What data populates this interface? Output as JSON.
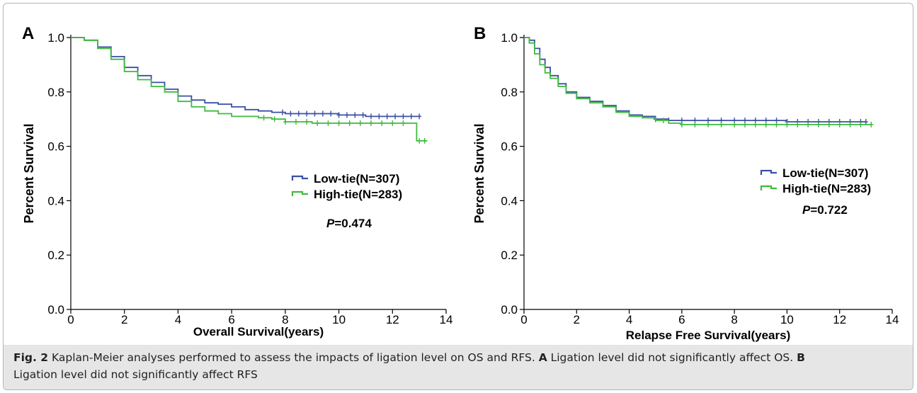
{
  "chart_data": [
    {
      "type": "line",
      "panel_label": "A",
      "xlabel": "Overall Survival(years)",
      "ylabel": "Percent Survival",
      "xlim": [
        0,
        14
      ],
      "ylim": [
        0.0,
        1.0
      ],
      "x_ticks": [
        "0",
        "2",
        "4",
        "6",
        "8",
        "10",
        "12",
        "14"
      ],
      "y_ticks": [
        "0.0",
        "0.2",
        "0.4",
        "0.6",
        "0.8",
        "1.0"
      ],
      "legend": {
        "position": "center-right",
        "entries": [
          "Low-tie(N=307)",
          "High-tie(N=283)"
        ],
        "p_prefix": "P",
        "p_value": "=0.474"
      },
      "series": [
        {
          "name": "Low-tie(N=307)",
          "color": "#3a4fa6",
          "points": [
            [
              0,
              1.0
            ],
            [
              0.5,
              0.99
            ],
            [
              1.0,
              0.965
            ],
            [
              1.5,
              0.93
            ],
            [
              2.0,
              0.89
            ],
            [
              2.5,
              0.86
            ],
            [
              3.0,
              0.835
            ],
            [
              3.5,
              0.81
            ],
            [
              4.0,
              0.785
            ],
            [
              4.5,
              0.77
            ],
            [
              5.0,
              0.76
            ],
            [
              5.5,
              0.755
            ],
            [
              6.0,
              0.745
            ],
            [
              6.5,
              0.735
            ],
            [
              7.0,
              0.73
            ],
            [
              7.5,
              0.725
            ],
            [
              8.0,
              0.72
            ],
            [
              9.0,
              0.72
            ],
            [
              10.0,
              0.715
            ],
            [
              11.0,
              0.71
            ],
            [
              12.0,
              0.71
            ],
            [
              13.0,
              0.71
            ]
          ],
          "censor_x": [
            7.9,
            8.2,
            8.5,
            8.8,
            9.1,
            9.4,
            9.7,
            10.0,
            10.3,
            10.6,
            10.9,
            11.2,
            11.5,
            11.8,
            12.1,
            12.4,
            12.7,
            13.0
          ]
        },
        {
          "name": "High-tie(N=283)",
          "color": "#3dbb3d",
          "points": [
            [
              0,
              1.0
            ],
            [
              0.5,
              0.99
            ],
            [
              1.0,
              0.96
            ],
            [
              1.5,
              0.92
            ],
            [
              2.0,
              0.875
            ],
            [
              2.5,
              0.845
            ],
            [
              3.0,
              0.82
            ],
            [
              3.5,
              0.8
            ],
            [
              4.0,
              0.765
            ],
            [
              4.5,
              0.745
            ],
            [
              5.0,
              0.73
            ],
            [
              5.5,
              0.72
            ],
            [
              6.0,
              0.71
            ],
            [
              6.5,
              0.71
            ],
            [
              7.0,
              0.705
            ],
            [
              7.5,
              0.7
            ],
            [
              8.0,
              0.69
            ],
            [
              9.0,
              0.685
            ],
            [
              10.0,
              0.685
            ],
            [
              11.0,
              0.685
            ],
            [
              12.0,
              0.685
            ],
            [
              12.9,
              0.685
            ],
            [
              12.9,
              0.62
            ],
            [
              13.3,
              0.62
            ]
          ],
          "censor_x": [
            7.2,
            7.6,
            8.0,
            8.4,
            8.8,
            9.2,
            9.6,
            10.0,
            10.4,
            10.8,
            11.2,
            11.6,
            12.0,
            12.4,
            13.0,
            13.2
          ]
        }
      ]
    },
    {
      "type": "line",
      "panel_label": "B",
      "xlabel": "Relapse Free Survival(years)",
      "ylabel": "Percent Survival",
      "xlim": [
        0,
        14
      ],
      "ylim": [
        0.0,
        1.0
      ],
      "x_ticks": [
        "0",
        "2",
        "4",
        "6",
        "8",
        "10",
        "12",
        "14"
      ],
      "y_ticks": [
        "0.0",
        "0.2",
        "0.4",
        "0.6",
        "0.8",
        "1.0"
      ],
      "legend": {
        "position": "center-right",
        "entries": [
          "Low-tie(N=307)",
          "High-tie(N=283)"
        ],
        "p_prefix": "P",
        "p_value": "=0.722"
      },
      "series": [
        {
          "name": "Low-tie(N=307)",
          "color": "#3a4fa6",
          "points": [
            [
              0,
              1.0
            ],
            [
              0.2,
              0.99
            ],
            [
              0.4,
              0.96
            ],
            [
              0.6,
              0.92
            ],
            [
              0.8,
              0.89
            ],
            [
              1.0,
              0.86
            ],
            [
              1.3,
              0.83
            ],
            [
              1.6,
              0.8
            ],
            [
              2.0,
              0.78
            ],
            [
              2.5,
              0.765
            ],
            [
              3.0,
              0.75
            ],
            [
              3.5,
              0.73
            ],
            [
              4.0,
              0.715
            ],
            [
              4.5,
              0.71
            ],
            [
              5.0,
              0.7
            ],
            [
              5.5,
              0.695
            ],
            [
              6.0,
              0.695
            ],
            [
              8.0,
              0.695
            ],
            [
              10.0,
              0.69
            ],
            [
              12.0,
              0.69
            ],
            [
              13.0,
              0.69
            ]
          ],
          "censor_x": [
            5.0,
            5.5,
            6.0,
            6.5,
            7.0,
            7.5,
            8.0,
            8.4,
            8.8,
            9.2,
            9.6,
            10.0,
            10.4,
            10.8,
            11.2,
            11.6,
            12.0,
            12.4,
            12.8,
            13.0
          ]
        },
        {
          "name": "High-tie(N=283)",
          "color": "#3dbb3d",
          "points": [
            [
              0,
              1.0
            ],
            [
              0.2,
              0.98
            ],
            [
              0.4,
              0.94
            ],
            [
              0.6,
              0.9
            ],
            [
              0.8,
              0.87
            ],
            [
              1.0,
              0.85
            ],
            [
              1.3,
              0.82
            ],
            [
              1.6,
              0.795
            ],
            [
              2.0,
              0.775
            ],
            [
              2.5,
              0.76
            ],
            [
              3.0,
              0.745
            ],
            [
              3.5,
              0.725
            ],
            [
              4.0,
              0.71
            ],
            [
              4.5,
              0.705
            ],
            [
              5.0,
              0.695
            ],
            [
              5.5,
              0.685
            ],
            [
              6.0,
              0.68
            ],
            [
              8.0,
              0.68
            ],
            [
              10.0,
              0.68
            ],
            [
              12.0,
              0.68
            ],
            [
              13.2,
              0.68
            ]
          ],
          "censor_x": [
            5.3,
            6.0,
            6.5,
            7.0,
            7.5,
            8.0,
            8.4,
            8.8,
            9.2,
            9.6,
            10.0,
            10.4,
            10.8,
            11.2,
            11.6,
            12.0,
            12.4,
            12.8,
            13.2
          ]
        }
      ]
    }
  ],
  "caption": {
    "fig_label": "Fig. 2",
    "text_1": "  Kaplan-Meier analyses performed to assess the impacts of ligation level on OS and RFS. ",
    "label_a": "A",
    "text_2": " Ligation level did not significantly affect OS. ",
    "label_b": "B",
    "text_3": "Ligation level did not significantly affect RFS"
  }
}
